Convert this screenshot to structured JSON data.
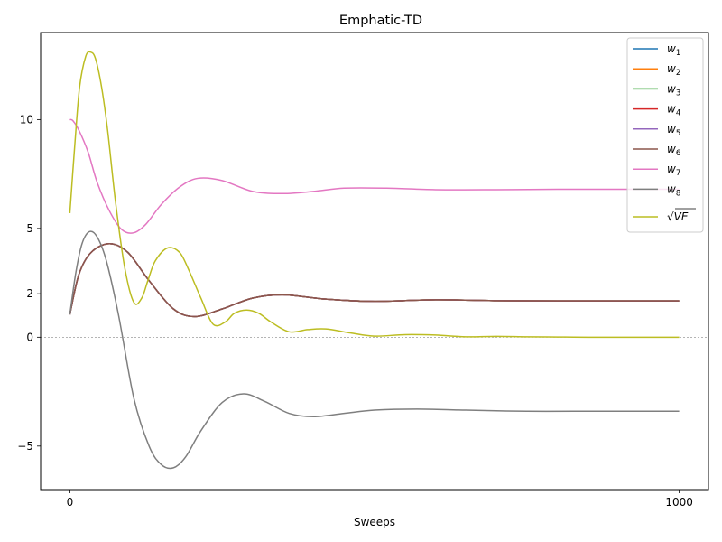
{
  "chart_data": {
    "type": "line",
    "title": "Emphatic-TD",
    "xlabel": "Sweeps",
    "ylabel": "",
    "xlim": [
      -48,
      1048
    ],
    "ylim": [
      -7,
      14
    ],
    "xticks": [
      0,
      1000
    ],
    "xtick_labels": [
      "0",
      "1000"
    ],
    "yticks": [
      -5,
      0,
      2,
      5,
      10
    ],
    "ytick_labels": [
      "−5",
      "0",
      "2",
      "5",
      "10"
    ],
    "zero_line": true,
    "grid": false,
    "legend_position": "top-right",
    "legend_items": [
      {
        "base": "w",
        "sub": "1",
        "color": "#1f77b4"
      },
      {
        "base": "w",
        "sub": "2",
        "color": "#ff7f0e"
      },
      {
        "base": "w",
        "sub": "3",
        "color": "#2ca02c"
      },
      {
        "base": "w",
        "sub": "4",
        "color": "#d62728"
      },
      {
        "base": "w",
        "sub": "5",
        "color": "#9467bd"
      },
      {
        "base": "w",
        "sub": "6",
        "color": "#8c564b"
      },
      {
        "base": "w",
        "sub": "7",
        "color": "#e377c2"
      },
      {
        "base": "w",
        "sub": "8",
        "color": "#7f7f7f"
      },
      {
        "base": "√VE",
        "sub": "",
        "color": "#bcbd22"
      }
    ],
    "series": [
      {
        "key": "w1",
        "color": "#1f77b4",
        "x": [
          0,
          15,
          35,
          65,
          95,
          130,
          170,
          205,
          250,
          300,
          350,
          420,
          500,
          600,
          700,
          800,
          1000
        ],
        "y": [
          1.05,
          2.9,
          3.9,
          4.3,
          3.9,
          2.6,
          1.3,
          0.95,
          1.3,
          1.8,
          1.95,
          1.75,
          1.65,
          1.72,
          1.68,
          1.67,
          1.67
        ]
      },
      {
        "key": "w2",
        "color": "#ff7f0e",
        "x": [
          0,
          15,
          35,
          65,
          95,
          130,
          170,
          205,
          250,
          300,
          350,
          420,
          500,
          600,
          700,
          800,
          1000
        ],
        "y": [
          1.05,
          2.9,
          3.9,
          4.3,
          3.9,
          2.6,
          1.3,
          0.95,
          1.3,
          1.8,
          1.95,
          1.75,
          1.65,
          1.72,
          1.68,
          1.67,
          1.67
        ]
      },
      {
        "key": "w3",
        "color": "#2ca02c",
        "x": [
          0,
          15,
          35,
          65,
          95,
          130,
          170,
          205,
          250,
          300,
          350,
          420,
          500,
          600,
          700,
          800,
          1000
        ],
        "y": [
          1.05,
          2.9,
          3.9,
          4.3,
          3.9,
          2.6,
          1.3,
          0.95,
          1.3,
          1.8,
          1.95,
          1.75,
          1.65,
          1.72,
          1.68,
          1.67,
          1.67
        ]
      },
      {
        "key": "w4",
        "color": "#d62728",
        "x": [
          0,
          15,
          35,
          65,
          95,
          130,
          170,
          205,
          250,
          300,
          350,
          420,
          500,
          600,
          700,
          800,
          1000
        ],
        "y": [
          1.05,
          2.9,
          3.9,
          4.3,
          3.9,
          2.6,
          1.3,
          0.95,
          1.3,
          1.8,
          1.95,
          1.75,
          1.65,
          1.72,
          1.68,
          1.67,
          1.67
        ]
      },
      {
        "key": "w5",
        "color": "#9467bd",
        "x": [
          0,
          15,
          35,
          65,
          95,
          130,
          170,
          205,
          250,
          300,
          350,
          420,
          500,
          600,
          700,
          800,
          1000
        ],
        "y": [
          1.05,
          2.9,
          3.9,
          4.3,
          3.9,
          2.6,
          1.3,
          0.95,
          1.3,
          1.8,
          1.95,
          1.75,
          1.65,
          1.72,
          1.68,
          1.67,
          1.67
        ]
      },
      {
        "key": "w6",
        "color": "#8c564b",
        "x": [
          0,
          15,
          35,
          65,
          95,
          130,
          170,
          205,
          250,
          300,
          350,
          420,
          500,
          600,
          700,
          800,
          1000
        ],
        "y": [
          1.05,
          2.9,
          3.9,
          4.3,
          3.9,
          2.6,
          1.3,
          0.95,
          1.3,
          1.8,
          1.95,
          1.75,
          1.65,
          1.72,
          1.68,
          1.67,
          1.67
        ]
      },
      {
        "key": "w7",
        "color": "#e377c2",
        "x": [
          0,
          5,
          15,
          30,
          45,
          65,
          85,
          105,
          125,
          150,
          180,
          210,
          250,
          300,
          350,
          400,
          450,
          520,
          600,
          700,
          800,
          1000
        ],
        "y": [
          10.0,
          9.95,
          9.5,
          8.5,
          7.1,
          5.8,
          4.95,
          4.8,
          5.2,
          6.1,
          6.9,
          7.3,
          7.2,
          6.7,
          6.6,
          6.7,
          6.85,
          6.85,
          6.78,
          6.78,
          6.8,
          6.8
        ]
      },
      {
        "key": "w8",
        "color": "#7f7f7f",
        "x": [
          0,
          10,
          20,
          32,
          45,
          60,
          80,
          105,
          130,
          150,
          170,
          190,
          215,
          250,
          285,
          320,
          360,
          400,
          450,
          500,
          570,
          650,
          750,
          850,
          1000
        ],
        "y": [
          1.05,
          3.0,
          4.3,
          4.85,
          4.6,
          3.5,
          1.0,
          -2.8,
          -5.0,
          -5.85,
          -6.0,
          -5.5,
          -4.3,
          -3.0,
          -2.6,
          -2.95,
          -3.5,
          -3.65,
          -3.5,
          -3.35,
          -3.3,
          -3.35,
          -3.4,
          -3.4,
          -3.4
        ]
      },
      {
        "key": "sqrtVE",
        "color": "#bcbd22",
        "x": [
          0,
          8,
          16,
          26,
          34,
          42,
          52,
          62,
          75,
          90,
          105,
          118,
          128,
          140,
          160,
          180,
          195,
          215,
          235,
          255,
          270,
          290,
          310,
          330,
          360,
          390,
          420,
          460,
          500,
          550,
          600,
          650,
          700,
          750,
          800,
          850,
          1000
        ],
        "y": [
          5.7,
          8.8,
          11.5,
          12.9,
          13.1,
          12.8,
          11.5,
          9.5,
          6.2,
          3.2,
          1.6,
          1.8,
          2.6,
          3.5,
          4.1,
          3.9,
          3.1,
          1.8,
          0.6,
          0.7,
          1.1,
          1.25,
          1.1,
          0.7,
          0.25,
          0.35,
          0.38,
          0.2,
          0.05,
          0.12,
          0.1,
          0.02,
          0.04,
          0.02,
          0.01,
          0.0,
          0.0
        ]
      }
    ]
  }
}
